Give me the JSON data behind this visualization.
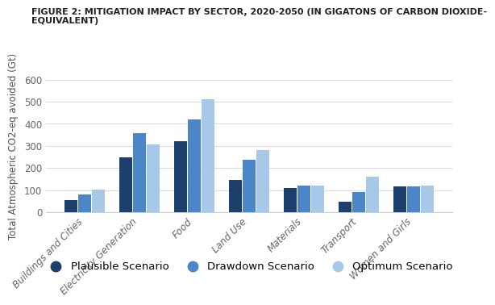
{
  "title_line1": "FIGURE 2: MITIGATION IMPACT BY SECTOR, 2020-2050 (IN GIGATONS OF CARBON DIOXIDE-",
  "title_line2": "EQUIVALENT)",
  "ylabel": "Total Atmospheric CO2-eq avoided (Gt)",
  "categories": [
    "Buildings and Cities",
    "Electricity Generation",
    "Food",
    "Land Use",
    "Materials",
    "Transport",
    "Women and Girls"
  ],
  "plausible": [
    57,
    248,
    322,
    148,
    110,
    47,
    118
  ],
  "drawdown": [
    80,
    358,
    420,
    237,
    122,
    92,
    118
  ],
  "optimum": [
    102,
    308,
    510,
    280,
    122,
    160,
    122
  ],
  "colors": {
    "plausible": "#1c3f6e",
    "drawdown": "#4a86c8",
    "optimum": "#a8c8e8"
  },
  "ylim": [
    0,
    600
  ],
  "yticks": [
    0,
    100,
    200,
    300,
    400,
    500,
    600
  ],
  "legend_labels": [
    "Plausible Scenario",
    "Drawdown Scenario",
    "Optimum Scenario"
  ],
  "background_color": "#ffffff",
  "title_fontsize": 8.0,
  "axis_label_fontsize": 8.5,
  "tick_fontsize": 8.5,
  "legend_fontsize": 9.5
}
